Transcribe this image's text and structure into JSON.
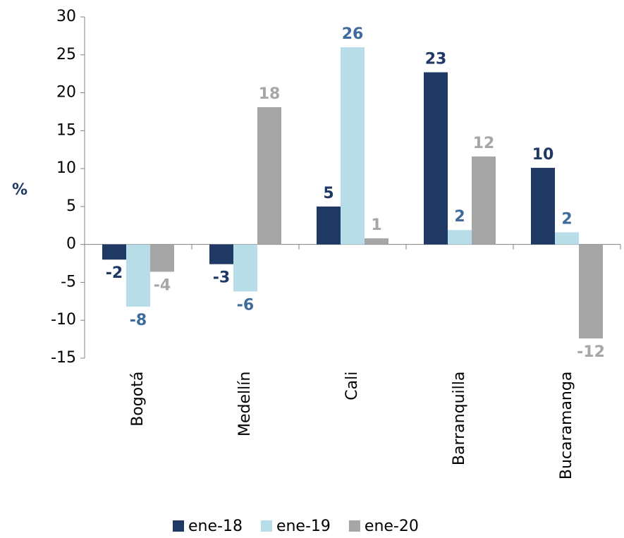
{
  "chart_data": {
    "type": "bar",
    "y_label": "%",
    "categories": [
      "Bogotá",
      "Medellín",
      "Cali",
      "Barranquilla",
      "Bucaramanga"
    ],
    "series": [
      {
        "name": "ene-18",
        "color": "#1f3864",
        "label_color": "#1f3864",
        "values": [
          -2.0,
          -2.6,
          5.0,
          22.7,
          10.1
        ],
        "value_labels": [
          "-2",
          "-3",
          "5",
          "23",
          "10"
        ]
      },
      {
        "name": "ene-19",
        "color": "#b7dde8",
        "label_color": "#3f6a9c",
        "values": [
          -8.2,
          -6.2,
          26.0,
          1.9,
          1.6
        ],
        "value_labels": [
          "-8",
          "-6",
          "26",
          "2",
          "2"
        ]
      },
      {
        "name": "ene-20",
        "color": "#a6a6a6",
        "label_color": "#a6a6a6",
        "values": [
          -3.6,
          18.1,
          0.8,
          11.6,
          -12.4
        ],
        "value_labels": [
          "-4",
          "18",
          "1",
          "12",
          "-12"
        ]
      }
    ],
    "ylim": [
      -15,
      30
    ],
    "yticks": [
      -15,
      -10,
      -5,
      0,
      5,
      10,
      15,
      20,
      25,
      30
    ],
    "grid": false
  }
}
